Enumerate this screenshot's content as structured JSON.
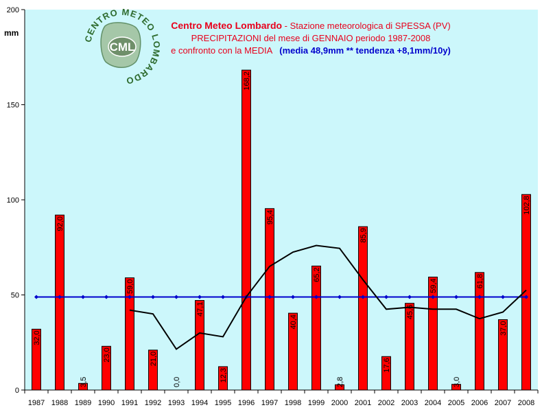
{
  "logo": {
    "ring_text": "CENTRO METEO LOMBARDO",
    "mid_text": "CML"
  },
  "title": {
    "line1_bold": "Centro Meteo Lombardo",
    "line1_rest": " - Stazione meteorologica di SPESSA (PV)",
    "line2": "PRECIPITAZIONI del mese di GENNAIO periodo 1987-2008",
    "line3_red": "e confronto con la MEDIA",
    "line3_blue": "(media 48,9mm ** tendenza +8,1mm/10y)"
  },
  "colors": {
    "background": "#ccf7fb",
    "bar": "#ff0000",
    "mean_line": "#0000cc",
    "trend_line": "#000000"
  },
  "chart_data": {
    "type": "bar",
    "ylabel": "mm",
    "ylim": [
      0,
      200
    ],
    "yticks": [
      0,
      50,
      100,
      150,
      200
    ],
    "categories": [
      "1987",
      "1988",
      "1989",
      "1990",
      "1991",
      "1992",
      "1993",
      "1994",
      "1995",
      "1996",
      "1997",
      "1998",
      "1999",
      "2000",
      "2001",
      "2002",
      "2003",
      "2004",
      "2005",
      "2006",
      "2007",
      "2008"
    ],
    "values": [
      32.0,
      92.0,
      3.5,
      23.0,
      59.0,
      21.0,
      0.0,
      47.1,
      12.3,
      168.2,
      95.4,
      40.4,
      65.2,
      2.8,
      85.9,
      17.6,
      45.6,
      59.4,
      3.0,
      61.8,
      37.0,
      102.8
    ],
    "data_labels": [
      "32,0",
      "92,0",
      "3,5",
      "23,0",
      "59,0",
      "21,0",
      "0,0",
      "47,1",
      "12,3",
      "168,2",
      "95,4",
      "40,4",
      "65,2",
      "2,8",
      "85,9",
      "17,6",
      "45,6",
      "59,4",
      "3,0",
      "61,8",
      "37,0",
      "102,8"
    ],
    "mean": 48.9,
    "trend": [
      null,
      null,
      null,
      null,
      42.0,
      40.0,
      21.5,
      30.0,
      28.0,
      49.0,
      65.0,
      72.5,
      76.0,
      74.5,
      58.0,
      42.5,
      43.5,
      42.5,
      42.5,
      37.5,
      41.0,
      52.5
    ]
  }
}
